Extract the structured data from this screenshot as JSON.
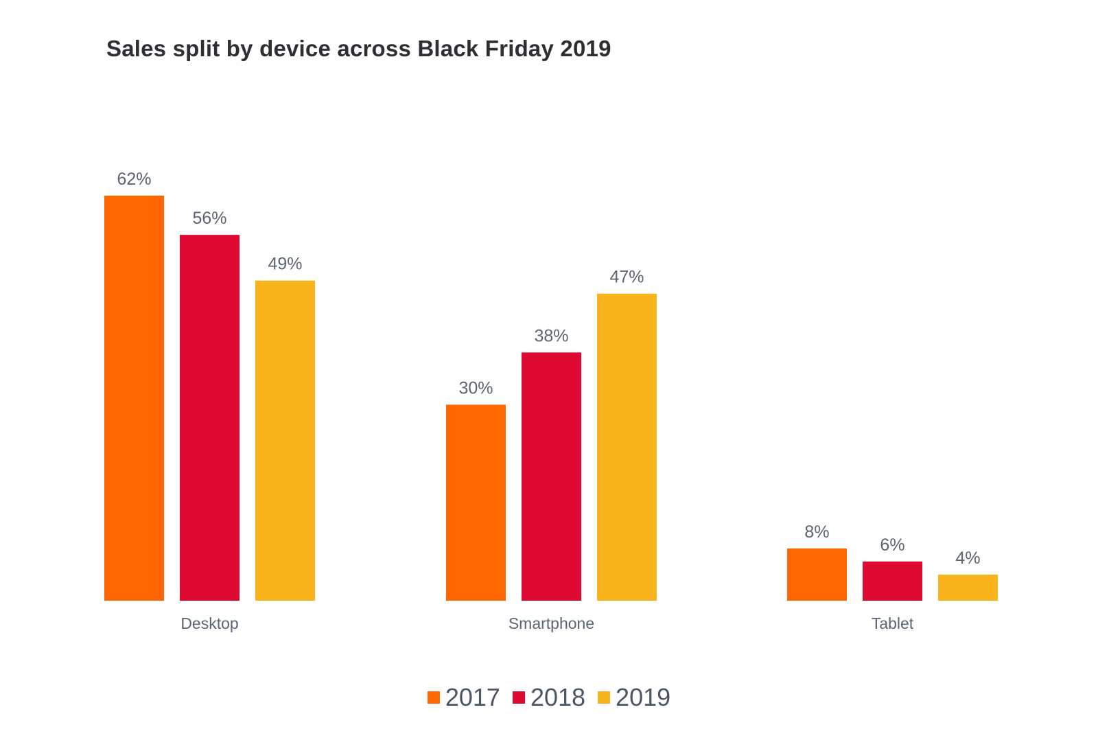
{
  "chart_data": {
    "type": "bar",
    "title": "Sales split by device across Black Friday 2019",
    "categories": [
      "Desktop",
      "Smartphone",
      "Tablet"
    ],
    "series": [
      {
        "name": "2017",
        "color": "#ff6600",
        "values": [
          62,
          30,
          8
        ]
      },
      {
        "name": "2018",
        "color": "#df0a32",
        "values": [
          56,
          38,
          6
        ]
      },
      {
        "name": "2019",
        "color": "#f9b31b",
        "values": [
          49,
          47,
          4
        ]
      }
    ],
    "value_suffix": "%",
    "xlabel": "",
    "ylabel": "",
    "ylim": [
      0,
      62
    ],
    "grid": false,
    "legend": "bottom-center"
  }
}
